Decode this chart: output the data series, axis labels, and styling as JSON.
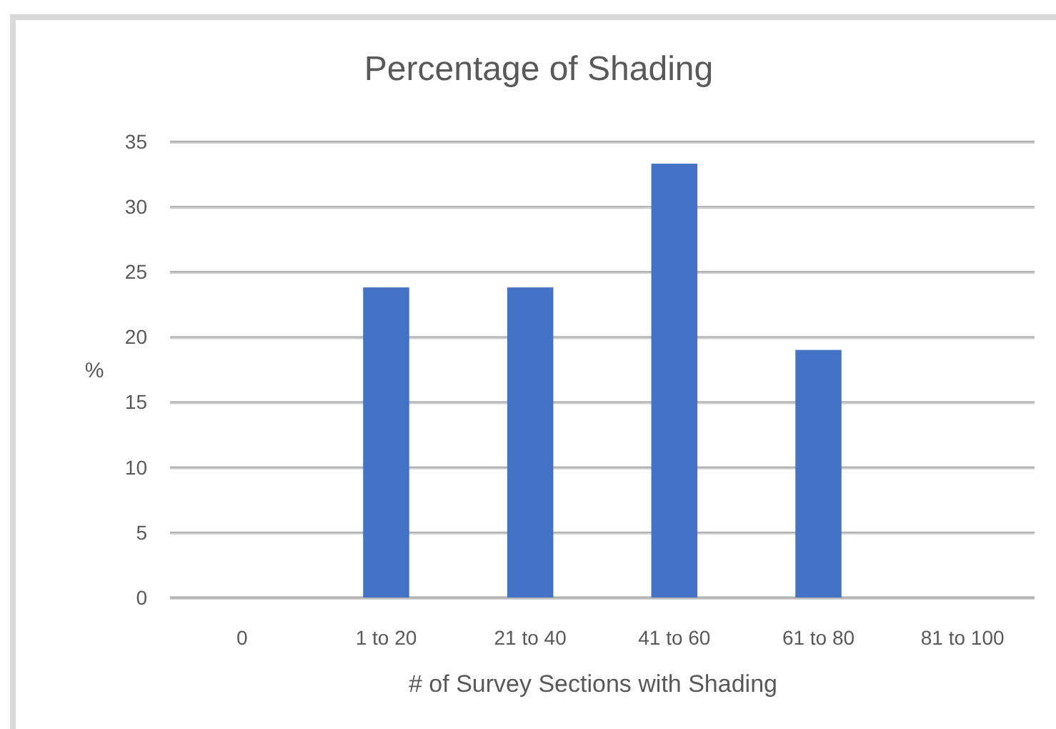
{
  "chart_data": {
    "type": "bar",
    "title": "Percentage of Shading",
    "xlabel": "# of Survey Sections with Shading",
    "ylabel": "%",
    "categories": [
      "0",
      "1 to 20",
      "21 to 40",
      "41 to 60",
      "61 to 80",
      "81 to 100"
    ],
    "values": [
      0,
      23.8,
      23.8,
      33.3,
      19.0,
      0
    ],
    "color": "#4472c4",
    "ylim": [
      0,
      35
    ],
    "yticks": [
      0,
      5,
      10,
      15,
      20,
      25,
      30,
      35
    ],
    "grid": "y"
  }
}
